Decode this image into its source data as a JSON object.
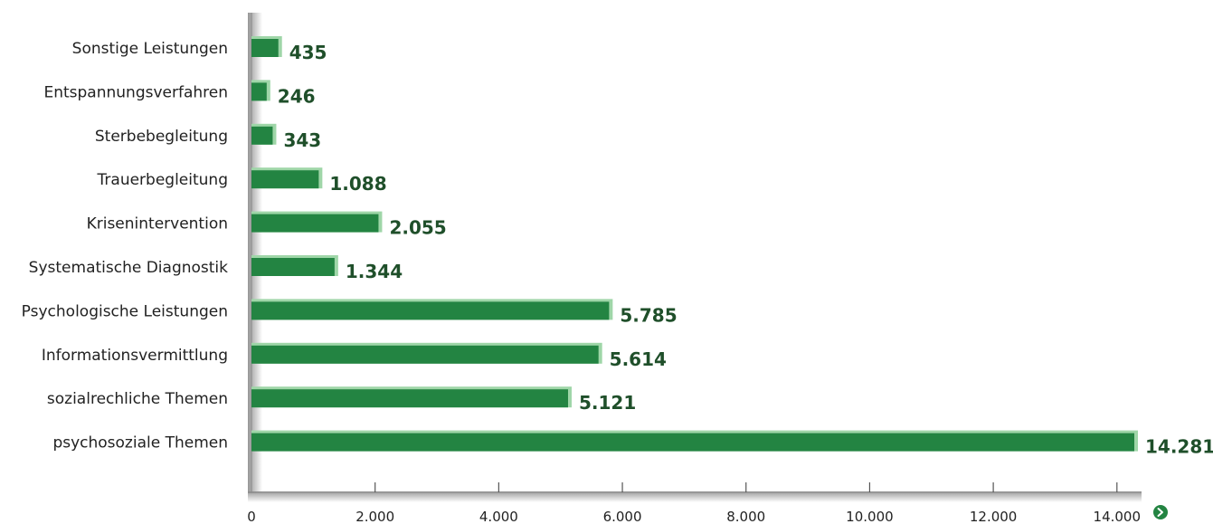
{
  "chart_data": {
    "type": "bar",
    "orientation": "horizontal",
    "categories": [
      "Sonstige Leistungen",
      "Entspannungsverfahren",
      "Sterbebegleitung",
      "Trauerbegleitung",
      "Krisenintervention",
      "Systematische Diagnostik",
      "Psychologische Leistungen",
      "Informationsvermittlung",
      "sozialrechliche Themen",
      "psychosoziale Themen"
    ],
    "values": [
      435,
      246,
      343,
      1088,
      2055,
      1344,
      5785,
      5614,
      5121,
      14281
    ],
    "value_labels": [
      "435",
      "246",
      "343",
      "1.088",
      "2.055",
      "1.344",
      "5.785",
      "5.614",
      "5.121",
      "14.281"
    ],
    "xlim": [
      0,
      14500
    ],
    "x_ticks": [
      0,
      2000,
      4000,
      6000,
      8000,
      10000,
      12000,
      14000
    ],
    "x_tick_labels": [
      "0",
      "2.000",
      "4.000",
      "6.000",
      "8.000",
      "10.000",
      "12.000",
      "14.000"
    ],
    "title": "",
    "xlabel": "",
    "ylabel": "",
    "grid": false,
    "legend": "none",
    "colors": {
      "bar": "#238442",
      "bar_shadow": "#9fd6a8",
      "value_text": "#1f4f2a",
      "axis_arrow": "#238442"
    },
    "icons": {
      "axis_end": "chevron-right-circle-icon"
    }
  }
}
